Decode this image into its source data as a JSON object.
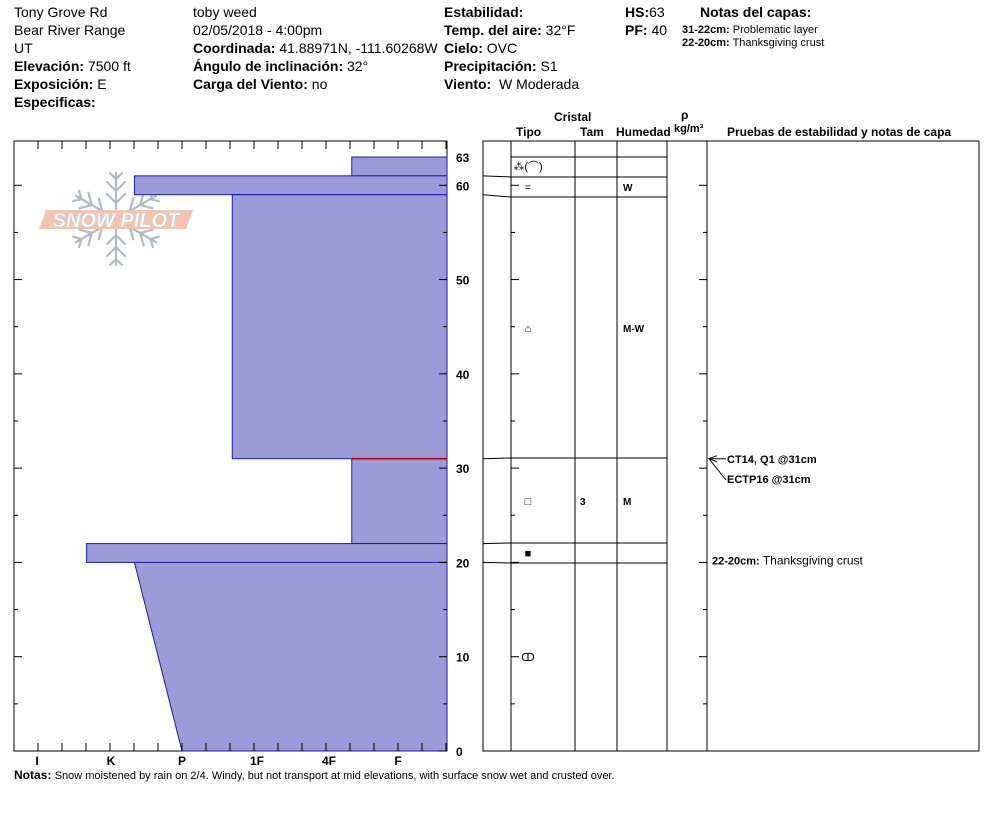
{
  "header": {
    "location": "Tony Grove Rd",
    "range": "Bear River Range",
    "state": "UT",
    "elevation_label": "Elevación:",
    "elevation": "7500 ft",
    "aspect_label": "Exposición:",
    "aspect": "E",
    "specifics_label": "Especificas:",
    "observer": "toby weed",
    "datetime": "02/05/2018 - 4:00pm",
    "coord_label": "Coordinada:",
    "coord": "41.88971N, -111.60268W",
    "slope_label": "Ángulo de inclinación:",
    "slope": "32°",
    "wind_load_label": "Carga del Viento:",
    "wind_load": "no",
    "stability_label": "Estabilidad:",
    "air_temp_label": "Temp. del aire:",
    "air_temp": "32°F",
    "sky_label": "Cielo:",
    "sky": "OVC",
    "precip_label": "Precipitación:",
    "precip": "S1",
    "wind_label": "Viento:",
    "wind": "W Moderada",
    "hs_label": "HS:",
    "hs": "63",
    "pf_label": "PF:",
    "pf": "40",
    "layer_notes_title": "Notas del capas:",
    "layer_notes": [
      {
        "range": "31-22cm:",
        "text": "Problematic layer"
      },
      {
        "range": "22-20cm:",
        "text": "Thanksgiving crust"
      }
    ]
  },
  "logo_text": "SNOW PILOT",
  "columns": {
    "crystal": "Cristal",
    "type": "Tipo",
    "size": "Tam",
    "moisture": "Humedad",
    "rho": "ρ",
    "density_unit": "kg/m³",
    "tests": "Pruebas de estabilidad y notas de capa"
  },
  "chart_data": {
    "type": "bar",
    "x_axis_ticks": [
      "I",
      "K",
      "P",
      "1F",
      "4F",
      "F"
    ],
    "y_axis_ticks": [
      0,
      10,
      20,
      30,
      40,
      50,
      60,
      63
    ],
    "ylim": [
      0,
      63
    ],
    "layers": [
      {
        "top": 63,
        "bottom": 61,
        "hardness": "4F-",
        "crystal": "⁂(⌒)",
        "size": "",
        "moisture": ""
      },
      {
        "top": 61,
        "bottom": 59,
        "hardness": "K-",
        "crystal": "=",
        "size": "",
        "moisture": "W"
      },
      {
        "top": 59,
        "bottom": 31,
        "hardness": "1F+",
        "crystal": "⌂",
        "size": "",
        "moisture": "M-W"
      },
      {
        "top": 31,
        "bottom": 22,
        "hardness": "4F-",
        "crystal": "□",
        "size": "3",
        "moisture": "M"
      },
      {
        "top": 22,
        "bottom": 20,
        "hardness": "K+",
        "crystal": "■",
        "size": "",
        "moisture": ""
      },
      {
        "top": 20,
        "bottom": 0,
        "hardness_top": "K-",
        "hardness_bottom": "P",
        "crystal": "ↀ",
        "size": "",
        "moisture": ""
      }
    ],
    "problem_layer_depth": 31,
    "tests": [
      {
        "text": "CT14, Q1 @31cm",
        "depth": 31
      },
      {
        "text": "ECTP16 @31cm",
        "depth": 31
      }
    ],
    "layer_note": {
      "range": "22-20cm:",
      "text": "Thanksgiving crust",
      "depth": 20
    }
  },
  "notes_label": "Notas:",
  "notes": "Snow moistened by rain on 2/4.  Windy, but not transport at mid elevations, with surface snow wet and crusted over."
}
